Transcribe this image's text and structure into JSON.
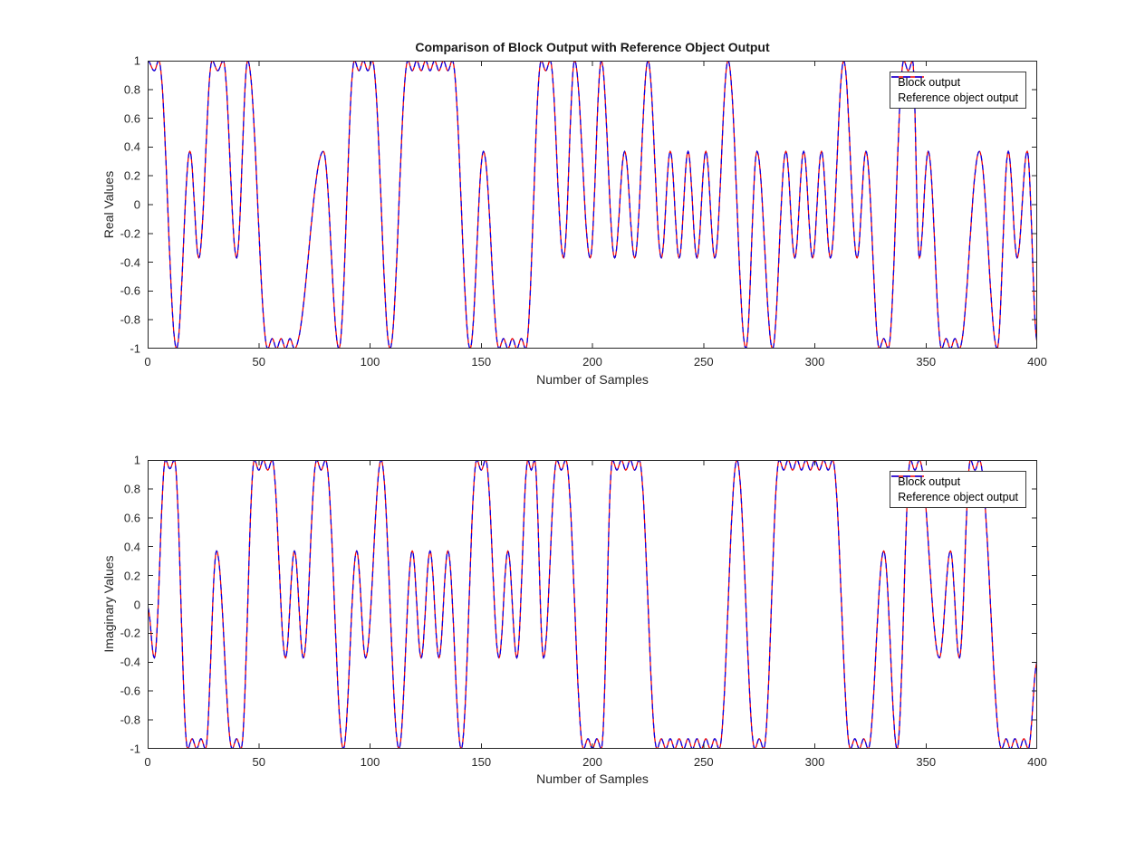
{
  "title": "Comparison of Block Output with Reference Object Output",
  "legend": {
    "items": [
      {
        "label": "Block output",
        "color": "#ee0000",
        "line_style": "solid"
      },
      {
        "label": "Reference object output",
        "color": "#0000ee",
        "line_style": "dashed"
      }
    ]
  },
  "chart_data": [
    {
      "type": "line",
      "title": "Comparison of Block Output with Reference Object Output",
      "xlabel": "Number of Samples",
      "ylabel": "Real Values",
      "xlim": [
        0,
        400
      ],
      "ylim": [
        -1,
        1
      ],
      "xticks": [
        0,
        50,
        100,
        150,
        200,
        250,
        300,
        350,
        400
      ],
      "yticks": [
        1,
        0.8,
        0.6,
        0.4,
        0.2,
        0,
        -0.2,
        -0.4,
        -0.6,
        -0.8,
        -1
      ],
      "grid": false,
      "legend_position": "top-right",
      "series": [
        {
          "name": "Block output",
          "color": "#ee0000",
          "line_style": "solid"
        },
        {
          "name": "Reference object output",
          "color": "#0000ee",
          "line_style": "dashed"
        }
      ],
      "series_overlap_note": "Both series coincide exactly; they share the extrema control points below (pulse-shaped waveform, ~4 samples per symbol, smooth arcs between extrema).",
      "points": [
        [
          0,
          1
        ],
        [
          3,
          0.93
        ],
        [
          5,
          1
        ],
        [
          13,
          -1
        ],
        [
          19,
          0.37
        ],
        [
          23,
          -0.37
        ],
        [
          29,
          1
        ],
        [
          31.5,
          0.93
        ],
        [
          34,
          1
        ],
        [
          40,
          -0.37
        ],
        [
          45,
          1
        ],
        [
          54,
          -1
        ],
        [
          56,
          -0.93
        ],
        [
          58,
          -1
        ],
        [
          60,
          -0.93
        ],
        [
          62,
          -1
        ],
        [
          64,
          -0.93
        ],
        [
          66,
          -1
        ],
        [
          79,
          0.37
        ],
        [
          86,
          -1
        ],
        [
          93,
          1
        ],
        [
          95,
          0.93
        ],
        [
          97,
          1
        ],
        [
          99,
          0.93
        ],
        [
          101,
          1
        ],
        [
          109,
          -1
        ],
        [
          117,
          1
        ],
        [
          119,
          0.93
        ],
        [
          121,
          1
        ],
        [
          123,
          0.93
        ],
        [
          125,
          1
        ],
        [
          127,
          0.93
        ],
        [
          129,
          1
        ],
        [
          131,
          0.93
        ],
        [
          133,
          1
        ],
        [
          135,
          0.93
        ],
        [
          137,
          1
        ],
        [
          145,
          -1
        ],
        [
          151,
          0.37
        ],
        [
          158,
          -1
        ],
        [
          160,
          -0.93
        ],
        [
          162,
          -1
        ],
        [
          164,
          -0.93
        ],
        [
          166,
          -1
        ],
        [
          168,
          -0.93
        ],
        [
          170,
          -1
        ],
        [
          177,
          1
        ],
        [
          179,
          0.93
        ],
        [
          181,
          1
        ],
        [
          187,
          -0.37
        ],
        [
          192,
          1
        ],
        [
          199,
          -0.37
        ],
        [
          204,
          1
        ],
        [
          210,
          -0.37
        ],
        [
          214.5,
          0.37
        ],
        [
          219,
          -0.37
        ],
        [
          225,
          1
        ],
        [
          231,
          -0.37
        ],
        [
          235,
          0.37
        ],
        [
          239,
          -0.37
        ],
        [
          243,
          0.37
        ],
        [
          247,
          -0.37
        ],
        [
          251,
          0.37
        ],
        [
          255,
          -0.37
        ],
        [
          261,
          1
        ],
        [
          269,
          -1
        ],
        [
          274,
          0.37
        ],
        [
          281,
          -1
        ],
        [
          287,
          0.37
        ],
        [
          291,
          -0.37
        ],
        [
          295,
          0.37
        ],
        [
          299,
          -0.37
        ],
        [
          303,
          0.37
        ],
        [
          307,
          -0.37
        ],
        [
          313,
          1
        ],
        [
          319,
          -0.37
        ],
        [
          323,
          0.37
        ],
        [
          329,
          -1
        ],
        [
          331,
          -0.93
        ],
        [
          333,
          -1
        ],
        [
          340,
          1
        ],
        [
          342,
          0.93
        ],
        [
          344,
          1
        ],
        [
          347,
          -0.37
        ],
        [
          351,
          0.37
        ],
        [
          357,
          -1
        ],
        [
          359,
          -0.93
        ],
        [
          361,
          -1
        ],
        [
          363,
          -0.93
        ],
        [
          365,
          -1
        ],
        [
          374,
          0.37
        ],
        [
          382,
          -1
        ],
        [
          387,
          0.37
        ],
        [
          391,
          -0.37
        ],
        [
          395.5,
          0.37
        ],
        [
          400,
          -0.95
        ]
      ]
    },
    {
      "type": "line",
      "title": "",
      "xlabel": "Number of Samples",
      "ylabel": "Imaginary Values",
      "xlim": [
        0,
        400
      ],
      "ylim": [
        -1,
        1
      ],
      "xticks": [
        0,
        50,
        100,
        150,
        200,
        250,
        300,
        350,
        400
      ],
      "yticks": [
        1,
        0.8,
        0.6,
        0.4,
        0.2,
        0,
        -0.2,
        -0.4,
        -0.6,
        -0.8,
        -1
      ],
      "grid": false,
      "legend_position": "top-right",
      "series": [
        {
          "name": "Block output",
          "color": "#ee0000",
          "line_style": "solid"
        },
        {
          "name": "Reference object output",
          "color": "#0000ee",
          "line_style": "dashed"
        }
      ],
      "series_overlap_note": "Both series coincide exactly; they share the extrema control points below.",
      "points": [
        [
          0,
          -0.02
        ],
        [
          3,
          -0.37
        ],
        [
          8,
          1
        ],
        [
          10,
          0.94
        ],
        [
          12,
          1
        ],
        [
          18,
          -1
        ],
        [
          20,
          -0.93
        ],
        [
          22,
          -1
        ],
        [
          24,
          -0.93
        ],
        [
          26,
          -1
        ],
        [
          31,
          0.37
        ],
        [
          38,
          -1
        ],
        [
          40,
          -0.93
        ],
        [
          42,
          -1
        ],
        [
          48,
          1
        ],
        [
          50,
          0.93
        ],
        [
          52,
          1
        ],
        [
          54,
          0.93
        ],
        [
          56,
          1
        ],
        [
          62,
          -0.37
        ],
        [
          66,
          0.37
        ],
        [
          70,
          -0.37
        ],
        [
          76,
          1
        ],
        [
          78,
          0.93
        ],
        [
          80,
          1
        ],
        [
          88,
          -1
        ],
        [
          94,
          0.37
        ],
        [
          98,
          -0.37
        ],
        [
          105,
          1
        ],
        [
          113,
          -1
        ],
        [
          119,
          0.37
        ],
        [
          123,
          -0.37
        ],
        [
          127,
          0.37
        ],
        [
          131,
          -0.37
        ],
        [
          135,
          0.37
        ],
        [
          141,
          -1
        ],
        [
          148,
          1
        ],
        [
          150,
          0.93
        ],
        [
          152,
          1
        ],
        [
          158,
          -0.37
        ],
        [
          162,
          0.37
        ],
        [
          166,
          -0.37
        ],
        [
          171,
          1
        ],
        [
          172.5,
          0.93
        ],
        [
          174,
          1
        ],
        [
          178,
          -0.37
        ],
        [
          184,
          1
        ],
        [
          186,
          0.93
        ],
        [
          188,
          1
        ],
        [
          196,
          -1
        ],
        [
          198,
          -0.93
        ],
        [
          200,
          -1
        ],
        [
          202,
          -0.93
        ],
        [
          204,
          -1
        ],
        [
          209,
          1
        ],
        [
          211,
          0.93
        ],
        [
          213,
          1
        ],
        [
          215,
          0.93
        ],
        [
          217,
          1
        ],
        [
          219,
          0.93
        ],
        [
          221,
          1
        ],
        [
          229,
          -1
        ],
        [
          231,
          -0.93
        ],
        [
          233,
          -1
        ],
        [
          235,
          -0.93
        ],
        [
          237,
          -1
        ],
        [
          239,
          -0.93
        ],
        [
          241,
          -1
        ],
        [
          243,
          -0.93
        ],
        [
          245,
          -1
        ],
        [
          247,
          -0.93
        ],
        [
          249,
          -1
        ],
        [
          251,
          -0.93
        ],
        [
          253,
          -1
        ],
        [
          255,
          -0.93
        ],
        [
          257,
          -1
        ],
        [
          265,
          1
        ],
        [
          273,
          -1
        ],
        [
          275,
          -0.93
        ],
        [
          277,
          -1
        ],
        [
          284,
          1
        ],
        [
          286,
          0.93
        ],
        [
          288,
          1
        ],
        [
          290,
          0.93
        ],
        [
          292,
          1
        ],
        [
          294,
          0.93
        ],
        [
          296,
          1
        ],
        [
          298,
          0.93
        ],
        [
          300,
          1
        ],
        [
          302,
          0.93
        ],
        [
          304,
          1
        ],
        [
          306,
          0.93
        ],
        [
          308,
          1
        ],
        [
          316,
          -1
        ],
        [
          318,
          -0.93
        ],
        [
          320,
          -1
        ],
        [
          322,
          -0.93
        ],
        [
          324,
          -1
        ],
        [
          331,
          0.37
        ],
        [
          337,
          -1
        ],
        [
          343,
          1
        ],
        [
          345,
          0.93
        ],
        [
          347,
          1
        ],
        [
          356,
          -0.37
        ],
        [
          361,
          0.37
        ],
        [
          365,
          -0.37
        ],
        [
          370,
          1
        ],
        [
          372,
          0.93
        ],
        [
          374,
          1
        ],
        [
          384,
          -1
        ],
        [
          386,
          -0.93
        ],
        [
          388,
          -1
        ],
        [
          390,
          -0.93
        ],
        [
          392,
          -1
        ],
        [
          394,
          -0.93
        ],
        [
          396,
          -1
        ],
        [
          400,
          -0.4
        ]
      ]
    }
  ],
  "style": {
    "axis_color": "#262626",
    "background": "#ffffff",
    "block_output_color": "#ee0000",
    "reference_output_color": "#0000ee"
  }
}
